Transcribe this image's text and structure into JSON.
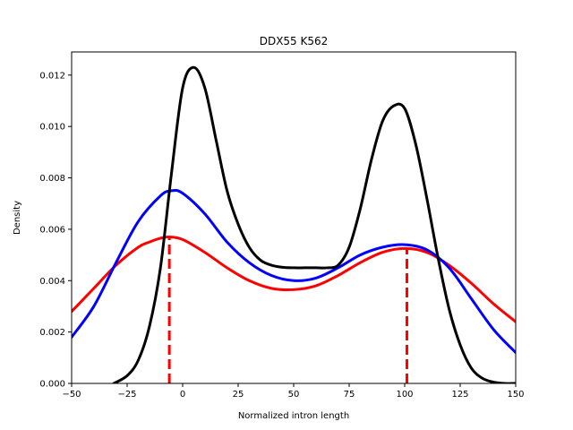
{
  "chart_data": {
    "type": "line",
    "title": "DDX55 K562",
    "xlabel": "Normalized intron length",
    "ylabel": "Density",
    "xlim": [
      -50,
      150
    ],
    "ylim": [
      0,
      0.0129
    ],
    "grid": false,
    "x_ticks": [
      -50,
      -25,
      0,
      25,
      50,
      75,
      100,
      125,
      150
    ],
    "x_tick_labels": [
      "−50",
      "−25",
      "0",
      "25",
      "50",
      "75",
      "100",
      "125",
      "150"
    ],
    "y_ticks": [
      0,
      0.002,
      0.004,
      0.006,
      0.008,
      0.01,
      0.012
    ],
    "y_tick_labels": [
      "0.000",
      "0.002",
      "0.004",
      "0.006",
      "0.008",
      "0.010",
      "0.012"
    ],
    "series": [
      {
        "color": "#ff0000",
        "style": "solid",
        "x": [
          -50,
          -40,
          -30,
          -20,
          -15,
          -10,
          -6,
          0,
          10,
          20,
          30,
          40,
          50,
          60,
          70,
          80,
          90,
          100,
          110,
          120,
          130,
          140,
          150
        ],
        "y": [
          0.0028,
          0.0037,
          0.0046,
          0.0053,
          0.0055,
          0.00565,
          0.0057,
          0.0056,
          0.0051,
          0.0045,
          0.004,
          0.0037,
          0.00365,
          0.0038,
          0.0042,
          0.0047,
          0.0051,
          0.00525,
          0.0051,
          0.0046,
          0.0039,
          0.0031,
          0.0024
        ]
      },
      {
        "color": "#0000ff",
        "style": "solid",
        "x": [
          -50,
          -40,
          -30,
          -20,
          -10,
          -5,
          0,
          10,
          20,
          30,
          40,
          50,
          60,
          70,
          80,
          90,
          100,
          110,
          120,
          130,
          140,
          150
        ],
        "y": [
          0.0018,
          0.003,
          0.0047,
          0.0063,
          0.0073,
          0.0075,
          0.0074,
          0.0066,
          0.0055,
          0.0047,
          0.0042,
          0.004,
          0.0041,
          0.0045,
          0.005,
          0.0053,
          0.0054,
          0.0052,
          0.0045,
          0.0033,
          0.0021,
          0.0012
        ]
      },
      {
        "color": "#000000",
        "style": "solid",
        "x": [
          -31,
          -25,
          -20,
          -15,
          -10,
          -5,
          0,
          5,
          10,
          15,
          20,
          25,
          30,
          35,
          40,
          45,
          50,
          55,
          60,
          65,
          70,
          75,
          80,
          85,
          90,
          95,
          100,
          105,
          110,
          115,
          120,
          125,
          130,
          135,
          140,
          145,
          150
        ],
        "y": [
          0.0,
          0.0003,
          0.0009,
          0.0022,
          0.0045,
          0.0082,
          0.0115,
          0.0123,
          0.0115,
          0.0095,
          0.0075,
          0.0062,
          0.0053,
          0.0048,
          0.0046,
          0.00452,
          0.0045,
          0.0045,
          0.0045,
          0.0045,
          0.0046,
          0.0053,
          0.0068,
          0.0087,
          0.0102,
          0.0108,
          0.0107,
          0.0093,
          0.0072,
          0.0049,
          0.0029,
          0.0015,
          0.0006,
          0.0002,
          5e-05,
          0.0,
          0.0
        ]
      }
    ],
    "vlines": [
      {
        "x": -6,
        "y": 0.0057,
        "color": "#ff0000",
        "style": "dashed"
      },
      {
        "x": 101,
        "y": 0.00525,
        "color": "#ff0000",
        "style": "dashed"
      }
    ]
  }
}
